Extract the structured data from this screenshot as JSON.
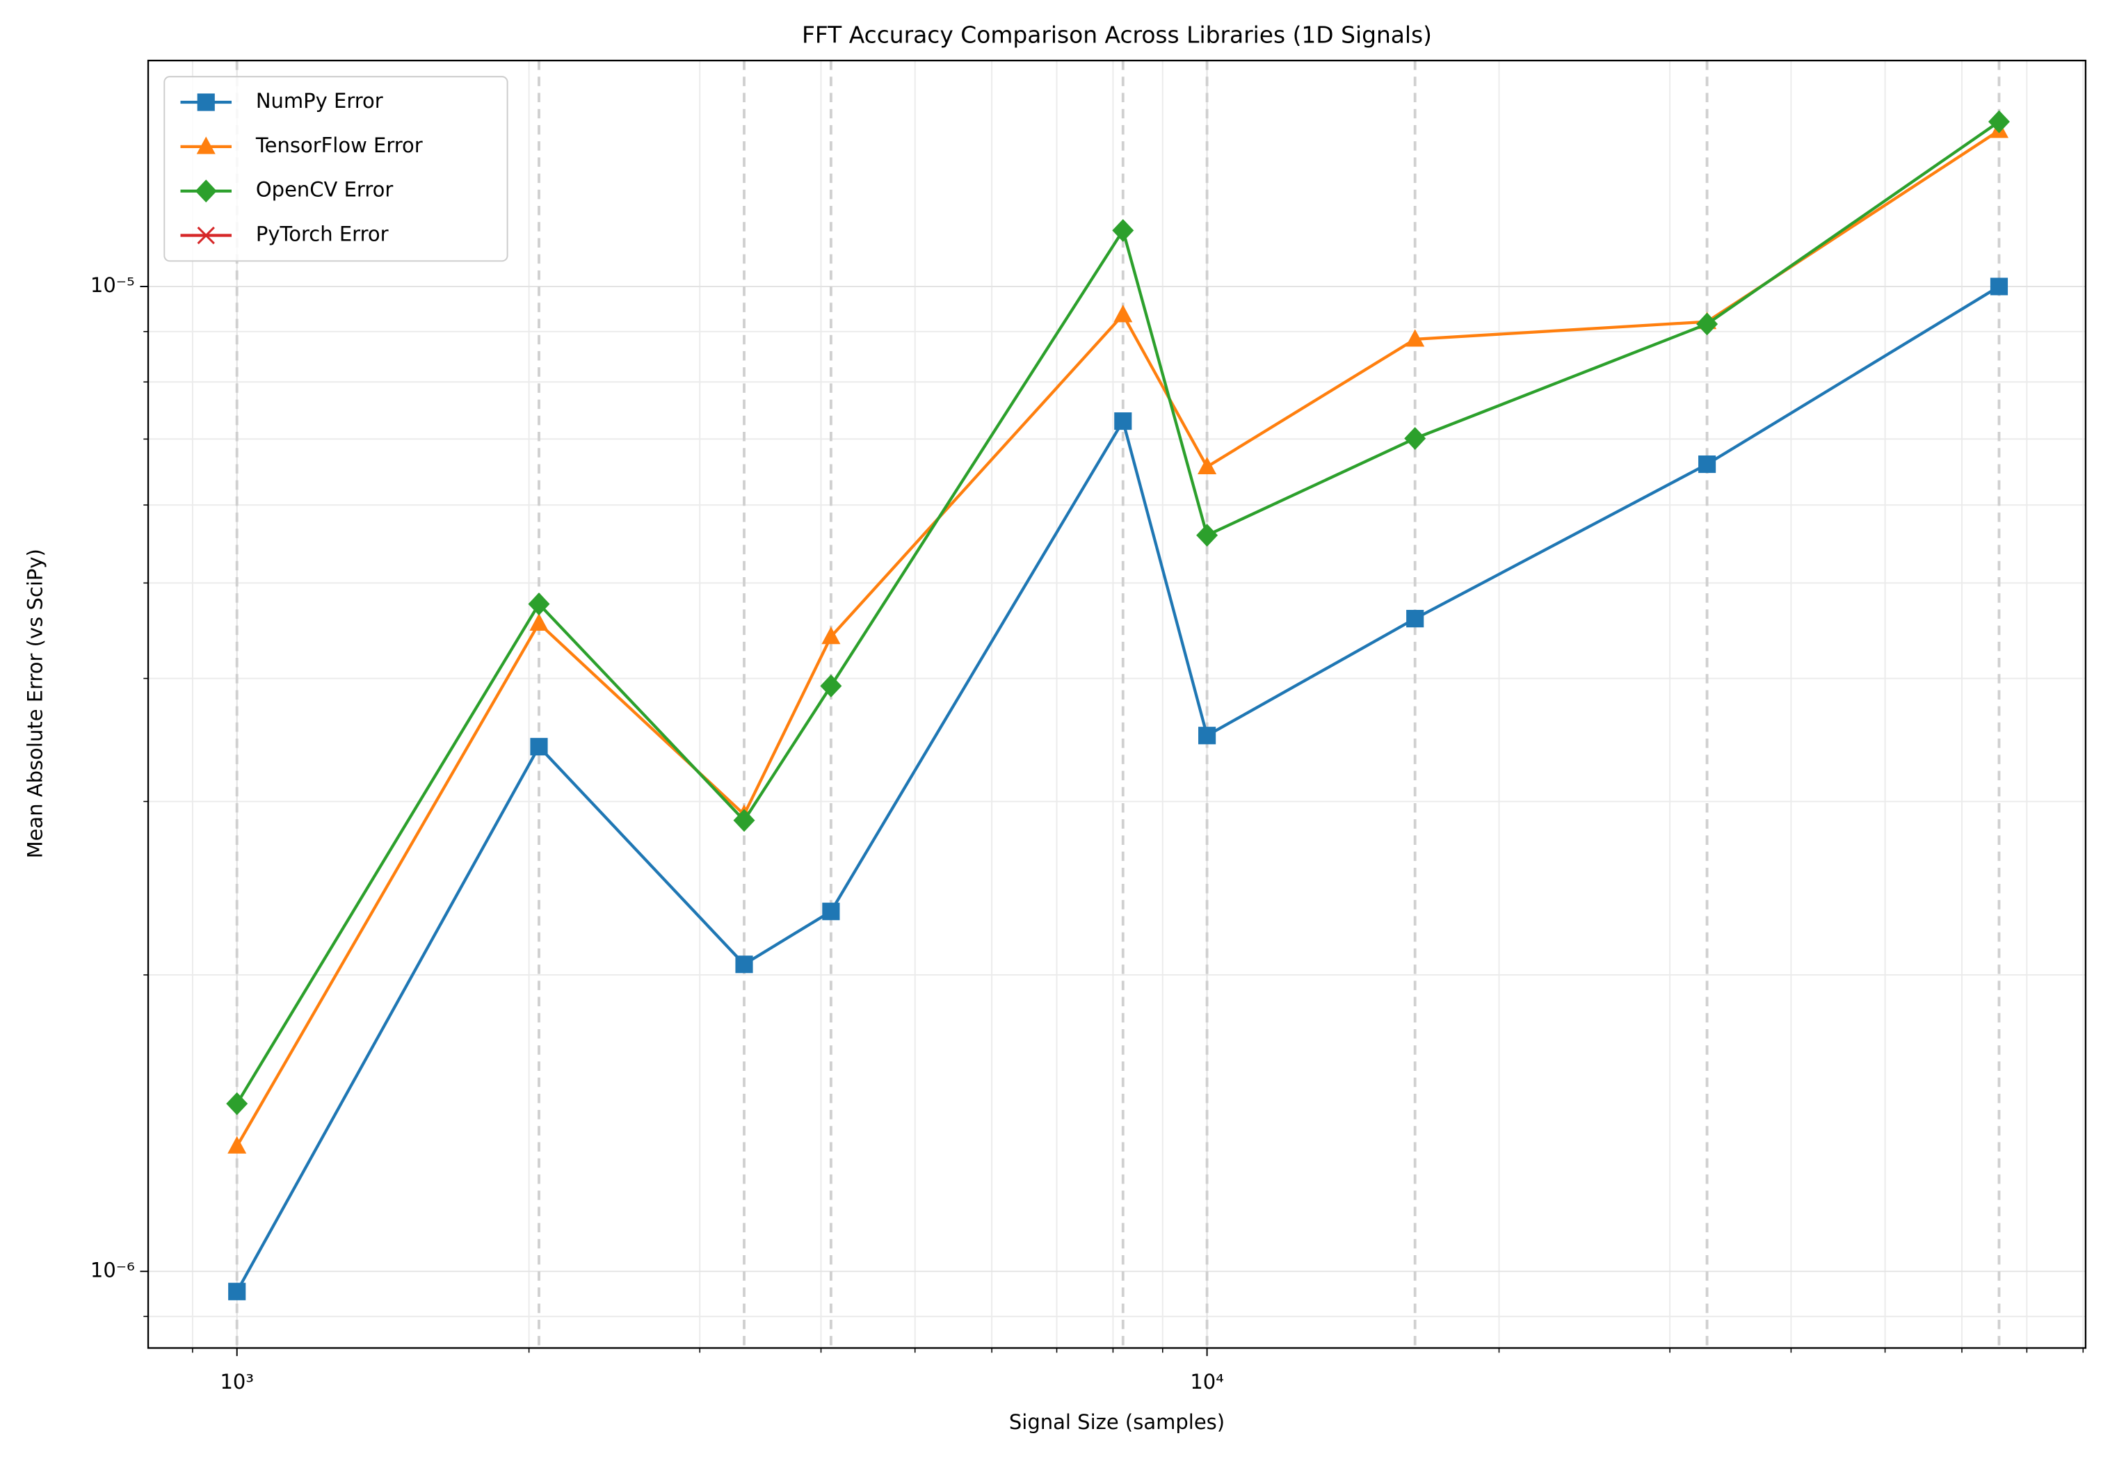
{
  "chart_data": {
    "type": "line",
    "title": "FFT Accuracy Comparison Across Libraries (1D Signals)",
    "xlabel": "Signal Size (samples)",
    "ylabel": "Mean Absolute Error (vs SciPy)",
    "x": [
      1000,
      2048,
      3333,
      4096,
      8192,
      10000,
      16384,
      32768,
      65536
    ],
    "series": [
      {
        "name": "NumPy Error",
        "color": "#1f77b4",
        "marker": "square",
        "values": [
          9.54e-07,
          3.41e-06,
          2.05e-06,
          2.32e-06,
          7.3e-06,
          3.5e-06,
          4.6e-06,
          6.6e-06,
          1e-05
        ]
      },
      {
        "name": "TensorFlow Error",
        "color": "#ff7f0e",
        "marker": "triangle",
        "values": [
          1.34e-06,
          4.55e-06,
          2.91e-06,
          4.41e-06,
          9.36e-06,
          6.56e-06,
          8.84e-06,
          9.21e-06,
          1.44e-05
        ]
      },
      {
        "name": "OpenCV Error",
        "color": "#2ca02c",
        "marker": "diamond",
        "values": [
          1.48e-06,
          4.76e-06,
          2.87e-06,
          3.93e-06,
          1.14e-05,
          5.59e-06,
          7.01e-06,
          9.16e-06,
          1.47e-05
        ]
      },
      {
        "name": "PyTorch Error",
        "color": "#d62728",
        "marker": "x",
        "values": [
          null,
          null,
          null,
          null,
          null,
          null,
          null,
          null,
          null
        ]
      }
    ],
    "xscale": "log",
    "yscale": "log",
    "xlim": [
      810,
      80480
    ],
    "ylim": [
      8.36e-07,
      1.696e-05
    ],
    "xticks": [
      {
        "value": 1000,
        "label": "10³"
      },
      {
        "value": 10000,
        "label": "10⁴"
      }
    ],
    "yticks": [
      {
        "value": 1e-06,
        "label": "10⁻⁶"
      },
      {
        "value": 1e-05,
        "label": "10⁻⁵"
      }
    ],
    "xminor_ticks": [
      900,
      2000,
      3000,
      4000,
      5000,
      6000,
      7000,
      8000,
      9000,
      20000,
      30000,
      40000,
      50000,
      60000,
      70000,
      80000
    ],
    "yminor_ticks": [
      9e-07,
      2e-06,
      3e-06,
      4e-06,
      5e-06,
      6e-06,
      7e-06,
      8e-06,
      9e-06
    ],
    "grid": true,
    "vlines": true,
    "legend": "upper left"
  }
}
